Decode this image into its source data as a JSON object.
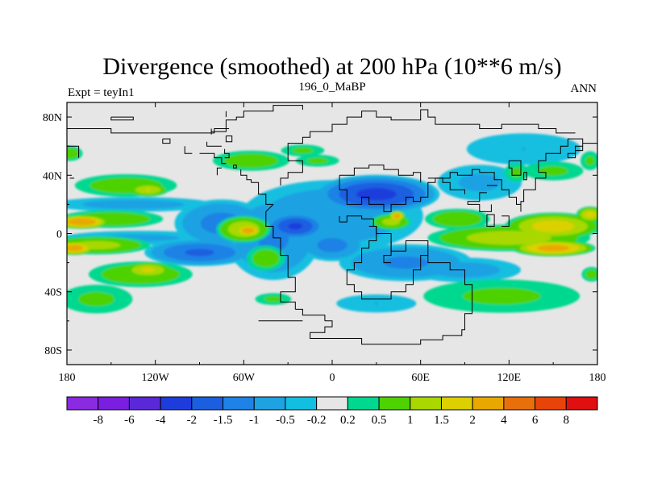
{
  "chart_data": {
    "type": "heatmap",
    "title": "Divergence (smoothed) at 200 hPa (10**6 m/s)",
    "subtitle_left": "Expt = teyIn1",
    "subtitle_center": "196_0_MaBP",
    "subtitle_right": "ANN",
    "xlim": [
      -180,
      180
    ],
    "ylim": [
      -90,
      90
    ],
    "x_ticks": [
      {
        "value": -180,
        "label": "180"
      },
      {
        "value": -120,
        "label": "120W"
      },
      {
        "value": -60,
        "label": "60W"
      },
      {
        "value": 0,
        "label": "0"
      },
      {
        "value": 60,
        "label": "60E"
      },
      {
        "value": 120,
        "label": "120E"
      },
      {
        "value": 180,
        "label": "180"
      }
    ],
    "y_ticks": [
      {
        "value": 80,
        "label": "80N"
      },
      {
        "value": 40,
        "label": "40N"
      },
      {
        "value": 0,
        "label": "0"
      },
      {
        "value": -40,
        "label": "40S"
      },
      {
        "value": -80,
        "label": "80S"
      }
    ],
    "background_color": "#e6e6e6",
    "colorbar": {
      "colors": [
        "#8a2be2",
        "#7a1fe0",
        "#5a28d8",
        "#1e3cdc",
        "#1b5fe0",
        "#1f82e6",
        "#1ea2e2",
        "#13bfe0",
        "#e6e6e6",
        "#00d890",
        "#4ed200",
        "#a8d800",
        "#dcd000",
        "#e8a800",
        "#e8700a",
        "#e8440a",
        "#e01010"
      ],
      "labels": [
        "-8",
        "-6",
        "-4",
        "-2",
        "-1.5",
        "-1",
        "-0.5",
        "-0.2",
        "0.2",
        "0.5",
        "1",
        "1.5",
        "2",
        "4",
        "6",
        "8"
      ]
    },
    "fields": [
      {
        "lon": 30,
        "lat": 27,
        "rlon": 45,
        "rlat": 14,
        "value": -2.2
      },
      {
        "lon": 0,
        "lat": 12,
        "rlon": 70,
        "rlat": 28,
        "value": -0.9
      },
      {
        "lon": -40,
        "lat": -3,
        "rlon": 35,
        "rlat": 32,
        "value": -1.1
      },
      {
        "lon": -75,
        "lat": 7,
        "rlon": 35,
        "rlat": 18,
        "value": -1.2
      },
      {
        "lon": -90,
        "lat": -13,
        "rlon": 40,
        "rlat": 10,
        "value": -1.6
      },
      {
        "lon": -25,
        "lat": 5,
        "rlon": 22,
        "rlat": 10,
        "value": -2.1
      },
      {
        "lon": 0,
        "lat": -8,
        "rlon": 25,
        "rlat": 12,
        "value": -1.2
      },
      {
        "lon": 50,
        "lat": -20,
        "rlon": 50,
        "rlat": 14,
        "value": -1.1
      },
      {
        "lon": 90,
        "lat": -25,
        "rlon": 45,
        "rlat": 10,
        "value": -0.7
      },
      {
        "lon": 100,
        "lat": 35,
        "rlon": 35,
        "rlat": 15,
        "value": -0.6
      },
      {
        "lon": 130,
        "lat": 58,
        "rlon": 50,
        "rlat": 14,
        "value": -0.5
      },
      {
        "lon": -135,
        "lat": 20,
        "rlon": 65,
        "rlat": 6,
        "value": -0.7
      },
      {
        "lon": -130,
        "lat": -3,
        "rlon": 65,
        "rlat": 6,
        "value": -0.6
      },
      {
        "lon": 30,
        "lat": -48,
        "rlon": 35,
        "rlat": 8,
        "value": -0.5
      },
      {
        "lon": -150,
        "lat": 10,
        "rlon": 40,
        "rlat": 7,
        "value": 0.9
      },
      {
        "lon": -160,
        "lat": -8,
        "rlon": 40,
        "rlat": 7,
        "value": 1.2
      },
      {
        "lon": -170,
        "lat": 8,
        "rlon": 20,
        "rlat": 5,
        "value": 2.6
      },
      {
        "lon": -175,
        "lat": -10,
        "rlon": 15,
        "rlat": 5,
        "value": 2.4
      },
      {
        "lon": -140,
        "lat": 33,
        "rlon": 40,
        "rlat": 9,
        "value": 0.8
      },
      {
        "lon": -130,
        "lat": -28,
        "rlon": 40,
        "rlat": 10,
        "value": 0.9
      },
      {
        "lon": -125,
        "lat": -25,
        "rlon": 18,
        "rlat": 6,
        "value": 1.6
      },
      {
        "lon": -125,
        "lat": 30,
        "rlon": 15,
        "rlat": 5,
        "value": 1.5
      },
      {
        "lon": -160,
        "lat": -45,
        "rlon": 30,
        "rlat": 12,
        "value": 0.6
      },
      {
        "lon": -178,
        "lat": 55,
        "rlon": 10,
        "rlat": 6,
        "value": 0.8
      },
      {
        "lon": -60,
        "lat": 3,
        "rlon": 20,
        "rlat": 10,
        "value": 1.4
      },
      {
        "lon": -57,
        "lat": 2,
        "rlon": 10,
        "rlat": 5,
        "value": 2.4
      },
      {
        "lon": -45,
        "lat": -17,
        "rlon": 15,
        "rlat": 10,
        "value": 0.8
      },
      {
        "lon": -55,
        "lat": 50,
        "rlon": 30,
        "rlat": 8,
        "value": 0.8
      },
      {
        "lon": -20,
        "lat": 57,
        "rlon": 18,
        "rlat": 5,
        "value": 0.6
      },
      {
        "lon": -10,
        "lat": 50,
        "rlon": 18,
        "rlat": 5,
        "value": 0.6
      },
      {
        "lon": 40,
        "lat": 8,
        "rlon": 15,
        "rlat": 6,
        "value": 1.2
      },
      {
        "lon": 44,
        "lat": 12,
        "rlon": 6,
        "rlat": 4,
        "value": 2.3
      },
      {
        "lon": 85,
        "lat": 10,
        "rlon": 25,
        "rlat": 8,
        "value": 0.9
      },
      {
        "lon": 120,
        "lat": -3,
        "rlon": 60,
        "rlat": 10,
        "value": 1.3
      },
      {
        "lon": 150,
        "lat": 5,
        "rlon": 35,
        "rlat": 10,
        "value": 1.8
      },
      {
        "lon": 150,
        "lat": -10,
        "rlon": 30,
        "rlat": 6,
        "value": 2.3
      },
      {
        "lon": 150,
        "lat": 43,
        "rlon": 25,
        "rlat": 8,
        "value": 0.6
      },
      {
        "lon": 125,
        "lat": 42,
        "rlon": 10,
        "rlat": 8,
        "value": 0.6
      },
      {
        "lon": 115,
        "lat": -43,
        "rlon": 65,
        "rlat": 14,
        "value": 0.6
      },
      {
        "lon": -40,
        "lat": -45,
        "rlon": 15,
        "rlat": 5,
        "value": 0.6
      },
      {
        "lon": 175,
        "lat": 13,
        "rlon": 10,
        "rlat": 6,
        "value": 1.7
      },
      {
        "lon": 176,
        "lat": -28,
        "rlon": 8,
        "rlat": 6,
        "value": 0.7
      },
      {
        "lon": 175,
        "lat": 50,
        "rlon": 8,
        "rlat": 8,
        "value": 0.6
      }
    ]
  }
}
